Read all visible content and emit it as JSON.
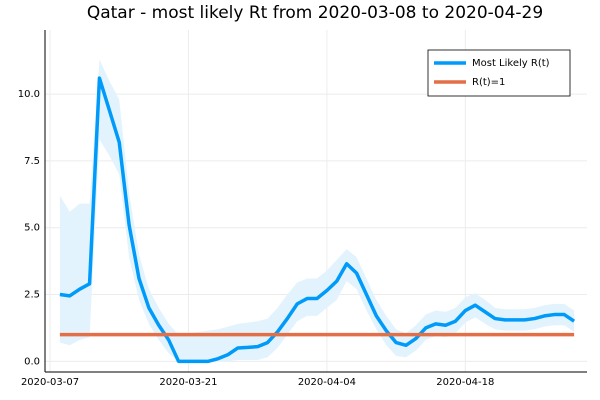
{
  "chart_data": {
    "type": "line",
    "title": "Qatar - most likely Rt from 2020-03-08 to 2020-04-29",
    "x": [
      "2020-03-08",
      "2020-03-09",
      "2020-03-10",
      "2020-03-11",
      "2020-03-12",
      "2020-03-13",
      "2020-03-14",
      "2020-03-15",
      "2020-03-16",
      "2020-03-17",
      "2020-03-18",
      "2020-03-19",
      "2020-03-20",
      "2020-03-21",
      "2020-03-22",
      "2020-03-23",
      "2020-03-24",
      "2020-03-25",
      "2020-03-26",
      "2020-03-27",
      "2020-03-28",
      "2020-03-29",
      "2020-03-30",
      "2020-03-31",
      "2020-04-01",
      "2020-04-02",
      "2020-04-03",
      "2020-04-04",
      "2020-04-05",
      "2020-04-06",
      "2020-04-07",
      "2020-04-08",
      "2020-04-09",
      "2020-04-10",
      "2020-04-11",
      "2020-04-12",
      "2020-04-13",
      "2020-04-14",
      "2020-04-15",
      "2020-04-16",
      "2020-04-17",
      "2020-04-18",
      "2020-04-19",
      "2020-04-20",
      "2020-04-21",
      "2020-04-22",
      "2020-04-23",
      "2020-04-24",
      "2020-04-25",
      "2020-04-26",
      "2020-04-27",
      "2020-04-28",
      "2020-04-29"
    ],
    "series": [
      {
        "name": "Most Likely R(t)",
        "color": "#009af9",
        "band_color": "#e3f3fe",
        "values": [
          2.5,
          2.45,
          2.7,
          2.9,
          10.6,
          9.4,
          8.2,
          5.1,
          3.1,
          2.0,
          1.35,
          0.8,
          0,
          0,
          0,
          0,
          0.1,
          0.25,
          0.5,
          0.52,
          0.55,
          0.7,
          1.1,
          1.6,
          2.15,
          2.35,
          2.35,
          2.65,
          3.0,
          3.65,
          3.3,
          2.5,
          1.7,
          1.15,
          0.7,
          0.6,
          0.85,
          1.25,
          1.4,
          1.35,
          1.5,
          1.9,
          2.1,
          1.85,
          1.6,
          1.55,
          1.55,
          1.55,
          1.6,
          1.7,
          1.75,
          1.75,
          1.5
        ],
        "upper": [
          6.2,
          5.6,
          5.9,
          5.9,
          11.3,
          10.5,
          9.8,
          6.3,
          4.0,
          2.7,
          2.0,
          1.4,
          1.0,
          1.05,
          1.1,
          1.15,
          1.2,
          1.3,
          1.4,
          1.45,
          1.5,
          1.6,
          2.0,
          2.5,
          2.95,
          3.1,
          3.1,
          3.4,
          3.8,
          4.2,
          3.9,
          3.1,
          2.3,
          1.7,
          1.2,
          1.05,
          1.35,
          1.75,
          1.9,
          1.85,
          2.0,
          2.4,
          2.55,
          2.3,
          2.0,
          1.95,
          1.95,
          1.95,
          2.0,
          2.1,
          2.15,
          2.15,
          1.9
        ],
        "lower": [
          0.7,
          0.6,
          0.8,
          0.9,
          8.3,
          7.7,
          7.0,
          3.9,
          2.3,
          1.4,
          0.8,
          0.3,
          0,
          0,
          0,
          0,
          0,
          0,
          0.05,
          0.05,
          0.05,
          0.15,
          0.5,
          1.0,
          1.5,
          1.7,
          1.7,
          2.0,
          2.3,
          3.0,
          2.7,
          1.9,
          1.2,
          0.6,
          0.2,
          0.15,
          0.4,
          0.8,
          0.95,
          0.9,
          1.05,
          1.45,
          1.65,
          1.4,
          1.2,
          1.15,
          1.15,
          1.15,
          1.2,
          1.3,
          1.35,
          1.35,
          1.1
        ]
      },
      {
        "name": "R(t)=1",
        "color": "#e26f46",
        "x": [
          "2020-03-08",
          "2020-04-29"
        ],
        "values": [
          1,
          1
        ]
      }
    ],
    "xlim": [
      "2020-03-07",
      "2020-04-30"
    ],
    "xticks": [
      "2020-03-07",
      "2020-03-21",
      "2020-04-04",
      "2020-04-18"
    ],
    "ylim": [
      -0.4,
      12.4
    ],
    "yticks": [
      {
        "value": 0,
        "label": "0.0"
      },
      2.5,
      {
        "value": 5,
        "label": "5.0"
      },
      7.5,
      {
        "value": 10,
        "label": "10.0"
      }
    ],
    "grid": true,
    "legend": "top-right"
  }
}
